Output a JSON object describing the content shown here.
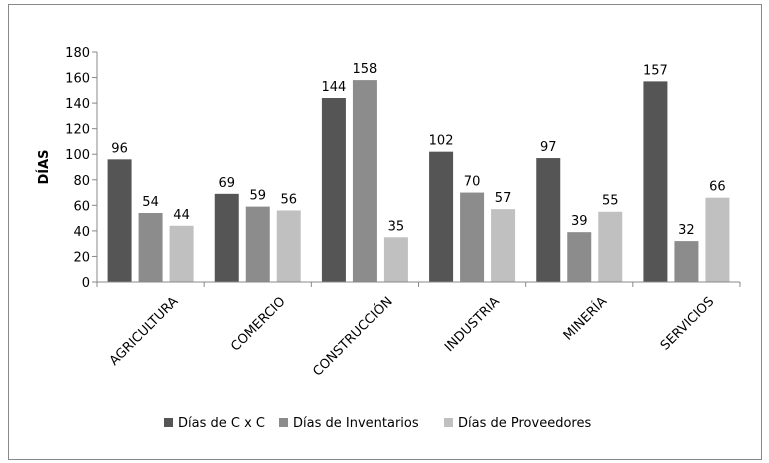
{
  "chart_data": {
    "type": "bar",
    "ylabel": "DÍAS",
    "categories": [
      "AGRICULTURA",
      "COMERCIO",
      "CONSTRUCCIÓN",
      "INDUSTRIA",
      "MINERÍA",
      "SERVICIOS"
    ],
    "series": [
      {
        "name": "Días de C x C",
        "color": "#555555",
        "values": [
          96,
          69,
          144,
          102,
          97,
          157
        ]
      },
      {
        "name": "Días de Inventarios",
        "color": "#8c8c8c",
        "values": [
          54,
          59,
          158,
          70,
          39,
          32
        ]
      },
      {
        "name": "Días de Proveedores",
        "color": "#c0c0c0",
        "values": [
          44,
          56,
          35,
          57,
          55,
          66
        ]
      }
    ],
    "ylim": [
      0,
      180
    ],
    "yticks": [
      0,
      20,
      40,
      60,
      80,
      100,
      120,
      140,
      160,
      180
    ],
    "legend": "bottom"
  }
}
